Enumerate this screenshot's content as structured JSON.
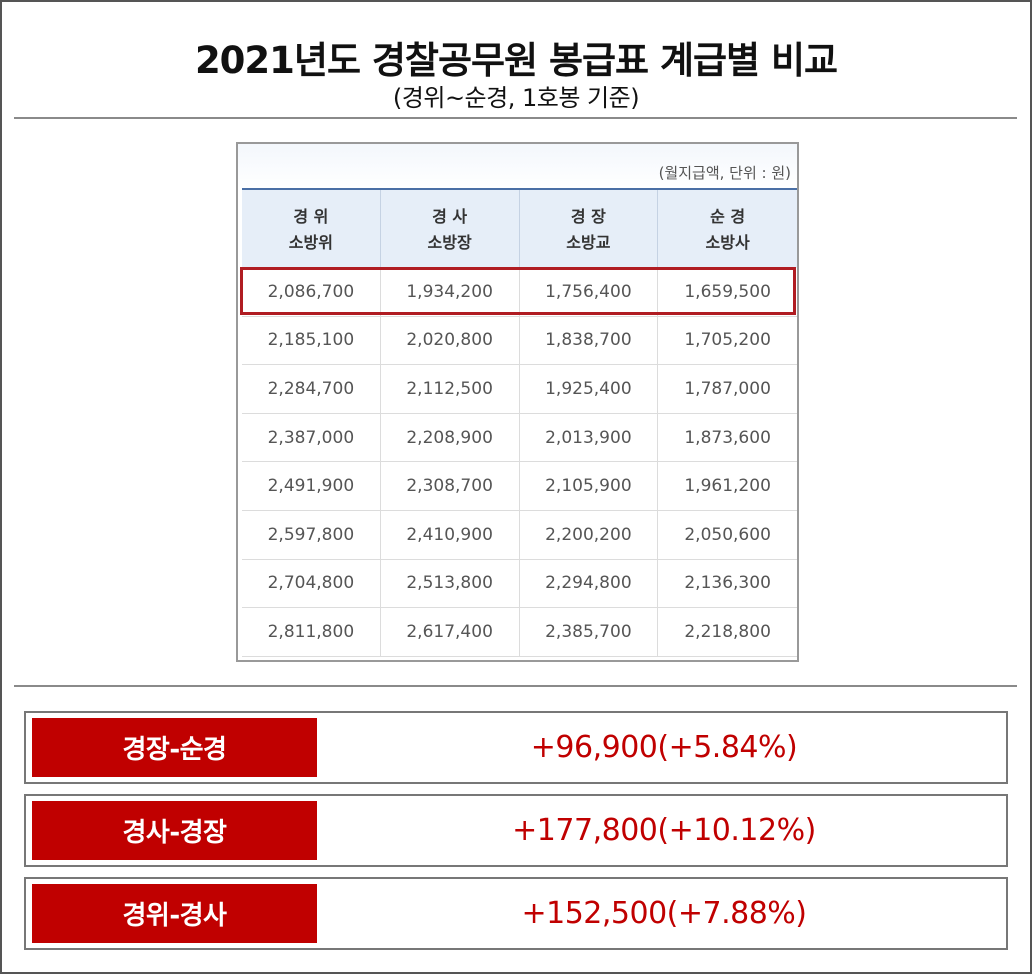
{
  "title": "2021년도 경찰공무원 봉급표 계급별 비교",
  "subtitle": "(경위~순경, 1호봉 기준)",
  "table": {
    "unit_note": "(월지급액, 단위 : 원)",
    "headers": [
      {
        "line1": "경 위",
        "line2": "소방위"
      },
      {
        "line1": "경 사",
        "line2": "소방장"
      },
      {
        "line1": "경 장",
        "line2": "소방교"
      },
      {
        "line1": "순 경",
        "line2": "소방사"
      }
    ],
    "rows": [
      [
        "2,086,700",
        "1,934,200",
        "1,756,400",
        "1,659,500"
      ],
      [
        "2,185,100",
        "2,020,800",
        "1,838,700",
        "1,705,200"
      ],
      [
        "2,284,700",
        "2,112,500",
        "1,925,400",
        "1,787,000"
      ],
      [
        "2,387,000",
        "2,208,900",
        "2,013,900",
        "1,873,600"
      ],
      [
        "2,491,900",
        "2,308,700",
        "2,105,900",
        "1,961,200"
      ],
      [
        "2,597,800",
        "2,410,900",
        "2,200,200",
        "2,050,600"
      ],
      [
        "2,704,800",
        "2,513,800",
        "2,294,800",
        "2,136,300"
      ],
      [
        "2,811,800",
        "2,617,400",
        "2,385,700",
        "2,218,800"
      ]
    ],
    "highlight_color": "#b01c22"
  },
  "comparisons": [
    {
      "label": "경장-순경",
      "value": "+96,900(+5.84%)"
    },
    {
      "label": "경사-경장",
      "value": "+177,800(+10.12%)"
    },
    {
      "label": "경위-경사",
      "value": "+152,500(+7.88%)"
    }
  ],
  "colors": {
    "accent": "#c00000",
    "header_bg": "#e6eef8"
  }
}
